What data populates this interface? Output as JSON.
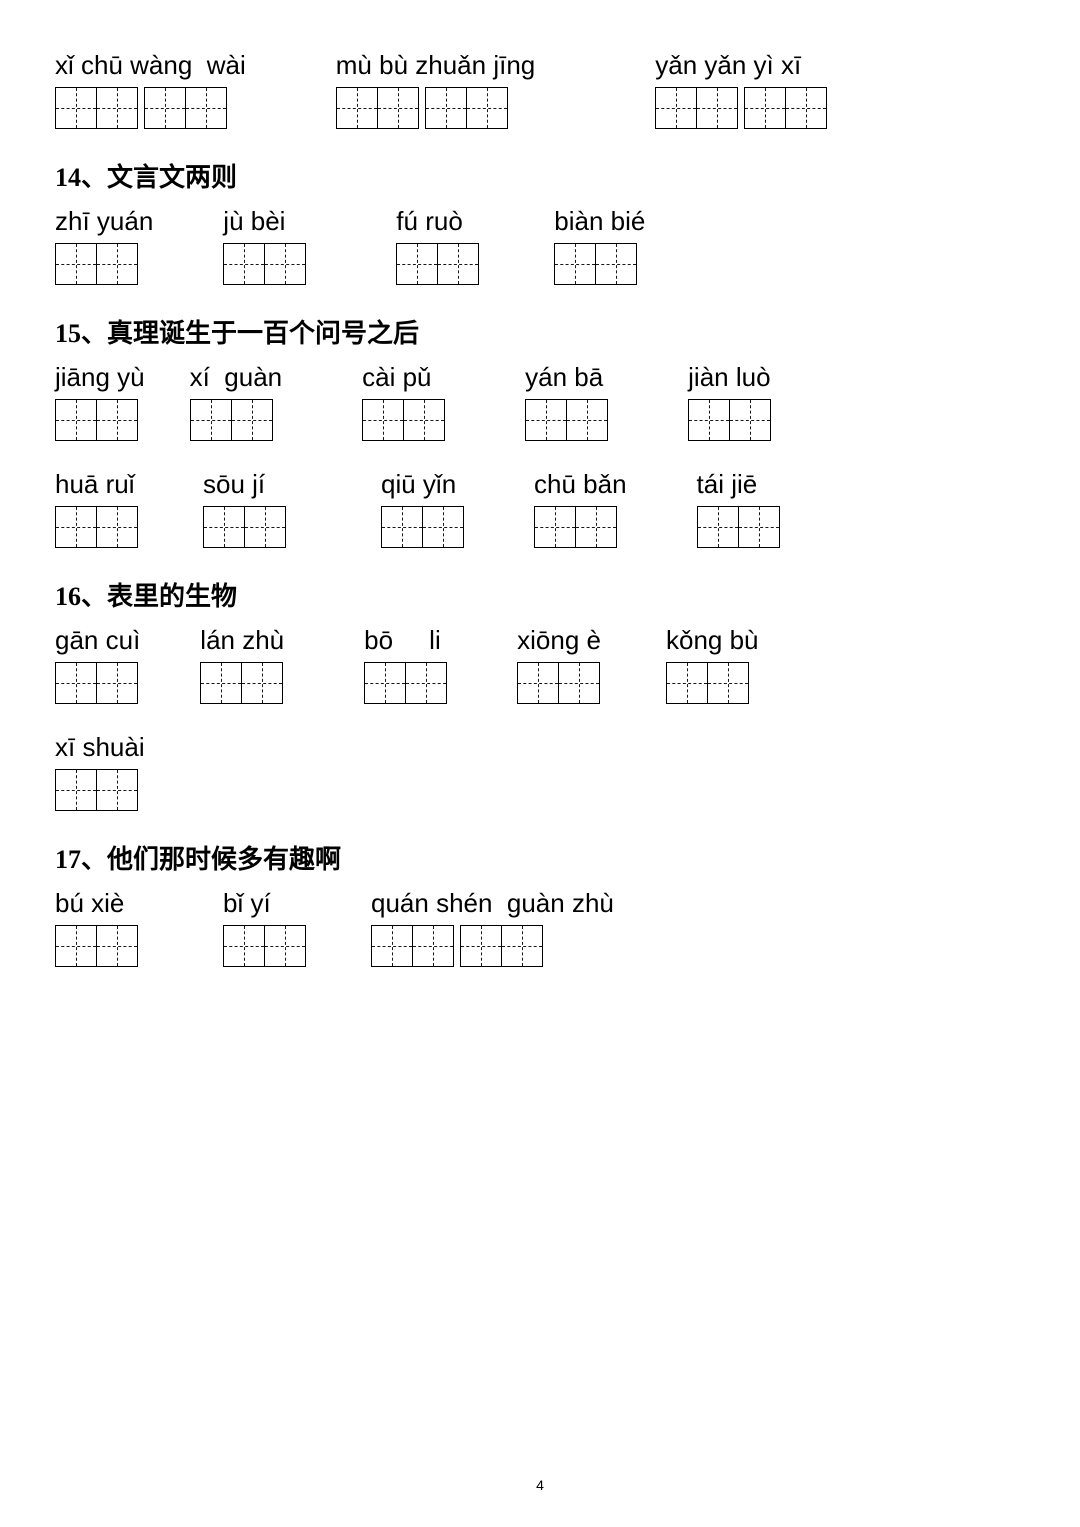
{
  "page_number": "4",
  "rows": [
    {
      "type": "items",
      "items": [
        {
          "pinyin": "xǐ chū wàng  wài",
          "groups": [
            2,
            2
          ],
          "ml": 0
        },
        {
          "pinyin": "mù bù zhuǎn jīng",
          "groups": [
            2,
            2
          ],
          "ml": 90
        },
        {
          "pinyin": "yǎn yǎn yì xī",
          "groups": [
            2,
            2
          ],
          "ml": 120
        }
      ]
    },
    {
      "type": "heading",
      "text": "14、文言文两则"
    },
    {
      "type": "items",
      "items": [
        {
          "pinyin": "zhī yuán",
          "groups": [
            2
          ],
          "ml": 0
        },
        {
          "pinyin": "jù bèi",
          "groups": [
            2
          ],
          "ml": 70
        },
        {
          "pinyin": "fú ruò",
          "groups": [
            2
          ],
          "ml": 90
        },
        {
          "pinyin": "biàn bié",
          "groups": [
            2
          ],
          "ml": 75
        }
      ]
    },
    {
      "type": "heading",
      "text": "15、真理诞生于一百个问号之后"
    },
    {
      "type": "items",
      "items": [
        {
          "pinyin": "jiāng yù",
          "groups": [
            2
          ],
          "ml": 0
        },
        {
          "pinyin": "xí  guàn",
          "groups": [
            2
          ],
          "ml": 45
        },
        {
          "pinyin": "cài pǔ",
          "groups": [
            2
          ],
          "ml": 80
        },
        {
          "pinyin": "yán bā",
          "groups": [
            2
          ],
          "ml": 80
        },
        {
          "pinyin": "jiàn luò",
          "groups": [
            2
          ],
          "ml": 80
        }
      ]
    },
    {
      "type": "items",
      "items": [
        {
          "pinyin": "huā ruǐ",
          "groups": [
            2
          ],
          "ml": 0
        },
        {
          "pinyin": "sōu jí",
          "groups": [
            2
          ],
          "ml": 65
        },
        {
          "pinyin": "qiū yǐn",
          "groups": [
            2
          ],
          "ml": 95
        },
        {
          "pinyin": "chū bǎn",
          "groups": [
            2
          ],
          "ml": 70
        },
        {
          "pinyin": "tái jiē",
          "groups": [
            2
          ],
          "ml": 70
        }
      ]
    },
    {
      "type": "heading",
      "text": "16、表里的生物"
    },
    {
      "type": "items",
      "items": [
        {
          "pinyin": "gān cuì",
          "groups": [
            2
          ],
          "ml": 0
        },
        {
          "pinyin": "lán zhù",
          "groups": [
            2
          ],
          "ml": 60
        },
        {
          "pinyin": "bō     li",
          "groups": [
            2
          ],
          "ml": 80
        },
        {
          "pinyin": "xiōng è",
          "groups": [
            2
          ],
          "ml": 70
        },
        {
          "pinyin": "kǒng bù",
          "groups": [
            2
          ],
          "ml": 65
        }
      ]
    },
    {
      "type": "items",
      "items": [
        {
          "pinyin": "xī shuài",
          "groups": [
            2
          ],
          "ml": 0
        }
      ]
    },
    {
      "type": "heading",
      "text": "17、他们那时候多有趣啊"
    },
    {
      "type": "items",
      "items": [
        {
          "pinyin": "bú xiè",
          "groups": [
            2
          ],
          "ml": 0
        },
        {
          "pinyin": "bǐ yí",
          "groups": [
            2
          ],
          "ml": 85
        },
        {
          "pinyin": "quán shén  guàn zhù",
          "groups": [
            2,
            2
          ],
          "ml": 65
        }
      ]
    }
  ]
}
